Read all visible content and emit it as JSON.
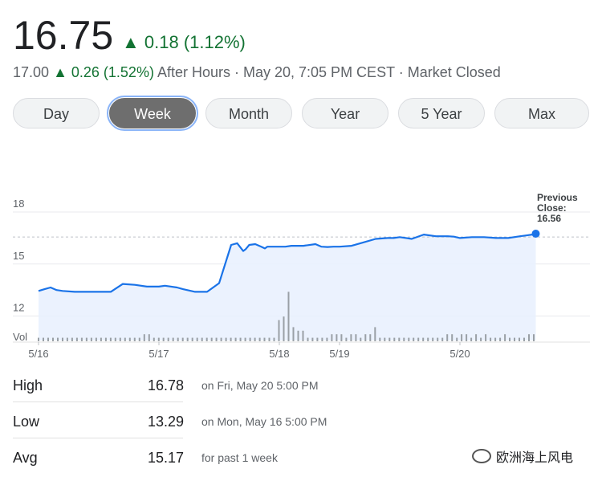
{
  "quote": {
    "price": "16.75",
    "change": "▲ 0.18 (1.12%)",
    "after_hours_price": "17.00",
    "after_hours_change": "▲ 0.26 (1.52%)",
    "after_hours_text": "After Hours · May 20, 7:05 PM CEST · Market Closed"
  },
  "tabs": [
    {
      "label": "Day",
      "active": false
    },
    {
      "label": "Week",
      "active": true
    },
    {
      "label": "Month",
      "active": false
    },
    {
      "label": "Year",
      "active": false
    },
    {
      "label": "5 Year",
      "active": false
    },
    {
      "label": "Max",
      "active": false
    }
  ],
  "chart_data": {
    "type": "line",
    "yticks": [
      12,
      15,
      18
    ],
    "ylim": [
      10.5,
      18.7
    ],
    "volume_label": "Vol",
    "x_tick_labels": [
      {
        "label": "5/16",
        "x": 0.0
      },
      {
        "label": "5/17",
        "x": 1.0
      },
      {
        "label": "5/18",
        "x": 2.0
      },
      {
        "label": "5/19",
        "x": 2.5
      },
      {
        "label": "5/20",
        "x": 3.5
      }
    ],
    "previous_close": 16.56,
    "previous_close_label": "Previous Close: 16.56",
    "line_color": "#1a73e8",
    "series": [
      {
        "x": [
          0.0,
          0.05,
          0.1,
          0.15,
          0.2,
          0.3,
          0.4,
          0.5,
          0.6,
          0.7,
          0.8,
          0.9,
          1.0,
          1.05,
          1.15,
          1.2,
          1.3,
          1.4,
          1.5,
          1.6,
          1.65,
          1.7,
          1.72,
          1.75,
          1.8,
          1.85,
          1.88,
          1.9,
          1.95,
          2.0,
          2.05,
          2.1,
          2.2,
          2.3,
          2.35,
          2.4,
          2.45,
          2.5,
          2.6,
          2.7,
          2.8,
          2.9,
          2.95,
          3.0,
          3.1,
          3.2,
          3.3,
          3.35,
          3.4,
          3.45,
          3.5,
          3.6,
          3.7,
          3.8,
          3.9,
          4.0,
          4.05,
          4.1,
          4.13
        ],
        "y": [
          13.45,
          13.55,
          13.65,
          13.5,
          13.45,
          13.4,
          13.4,
          13.4,
          13.4,
          13.85,
          13.8,
          13.7,
          13.7,
          13.75,
          13.65,
          13.55,
          13.4,
          13.4,
          13.9,
          16.1,
          16.2,
          15.75,
          15.85,
          16.1,
          16.15,
          16.0,
          15.9,
          16.0,
          16.0,
          16.0,
          16.0,
          16.05,
          16.05,
          16.15,
          16.0,
          15.98,
          16.0,
          16.0,
          16.05,
          16.25,
          16.45,
          16.5,
          16.5,
          16.55,
          16.45,
          16.7,
          16.6,
          16.6,
          16.6,
          16.58,
          16.5,
          16.55,
          16.55,
          16.5,
          16.5,
          16.6,
          16.65,
          16.7,
          16.75
        ]
      }
    ],
    "volume": [
      1,
      1,
      1,
      1,
      1,
      1,
      1,
      1,
      1,
      1,
      1,
      1,
      1,
      1,
      1,
      1,
      1,
      1,
      1,
      1,
      1,
      1,
      2,
      2,
      1,
      1,
      1,
      1,
      1,
      1,
      1,
      1,
      1,
      1,
      1,
      1,
      1,
      1,
      1,
      1,
      1,
      1,
      1,
      1,
      1,
      1,
      1,
      1,
      1,
      1,
      6,
      7,
      14,
      4,
      3,
      3,
      1,
      1,
      1,
      1,
      1,
      2,
      2,
      2,
      1,
      2,
      2,
      1,
      2,
      2,
      4,
      1,
      1,
      1,
      1,
      1,
      1,
      1,
      1,
      1,
      1,
      1,
      1,
      1,
      1,
      2,
      2,
      1,
      2,
      2,
      1,
      2,
      1,
      2,
      1,
      1,
      1,
      2,
      1,
      1,
      1,
      1,
      2,
      2
    ]
  },
  "stats": [
    {
      "label": "High",
      "value": "16.78",
      "note": "on Fri, May 20 5:00 PM"
    },
    {
      "label": "Low",
      "value": "13.29",
      "note": "on Mon, May 16 5:00 PM"
    },
    {
      "label": "Avg",
      "value": "15.17",
      "note": "for past 1 week"
    }
  ],
  "watermark": "欧洲海上风电"
}
